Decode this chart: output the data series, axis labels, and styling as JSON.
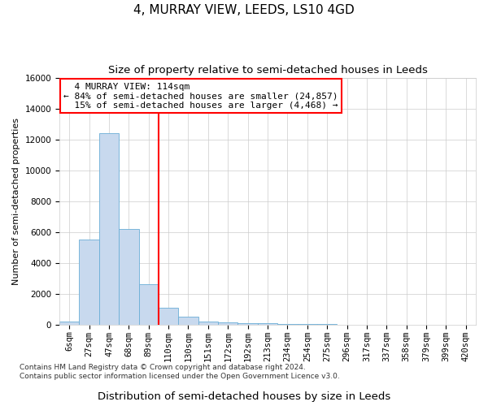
{
  "title": "4, MURRAY VIEW, LEEDS, LS10 4GD",
  "subtitle": "Size of property relative to semi-detached houses in Leeds",
  "xlabel": "Distribution of semi-detached houses by size in Leeds",
  "ylabel": "Number of semi-detached properties",
  "categories": [
    "6sqm",
    "27sqm",
    "47sqm",
    "68sqm",
    "89sqm",
    "110sqm",
    "130sqm",
    "151sqm",
    "172sqm",
    "192sqm",
    "213sqm",
    "234sqm",
    "254sqm",
    "275sqm",
    "296sqm",
    "317sqm",
    "337sqm",
    "358sqm",
    "379sqm",
    "399sqm",
    "420sqm"
  ],
  "bar_values": [
    200,
    5500,
    12400,
    6200,
    2600,
    1100,
    500,
    200,
    130,
    100,
    80,
    50,
    30,
    20,
    10,
    5,
    3,
    2,
    1,
    0.5,
    0.2
  ],
  "bar_color": "#c8d9ee",
  "bar_edgecolor": "#6aaed6",
  "vline_x_idx": 5,
  "vline_color": "red",
  "property_size": "114sqm",
  "property_name": "4 MURRAY VIEW",
  "pct_smaller": 84,
  "num_smaller": "24,857",
  "pct_larger": 15,
  "num_larger": "4,468",
  "ylim": [
    0,
    16000
  ],
  "yticks": [
    0,
    2000,
    4000,
    6000,
    8000,
    10000,
    12000,
    14000,
    16000
  ],
  "annotation_box_color": "red",
  "grid_color": "#cccccc",
  "footer": "Contains HM Land Registry data © Crown copyright and database right 2024.\nContains public sector information licensed under the Open Government Licence v3.0.",
  "title_fontsize": 11,
  "subtitle_fontsize": 9.5,
  "xlabel_fontsize": 9.5,
  "ylabel_fontsize": 8,
  "tick_fontsize": 7.5,
  "annotation_fontsize": 8,
  "footer_fontsize": 6.5
}
